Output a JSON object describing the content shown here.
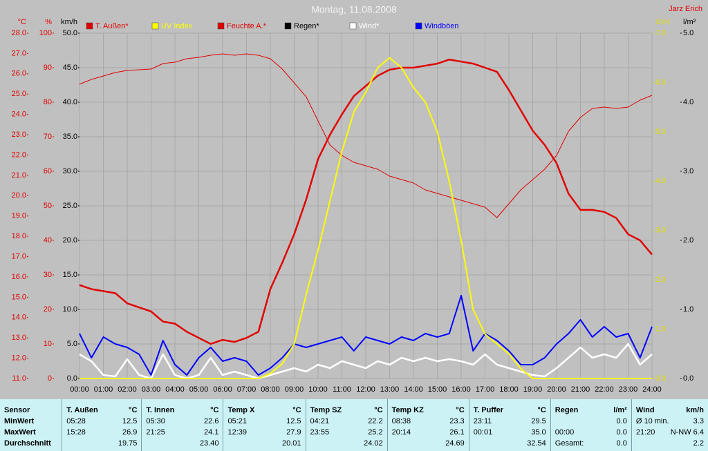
{
  "chart_data": {
    "type": "line",
    "title": "Montag, 11.08.2008",
    "author": "Jarz Erich",
    "xlim": [
      0,
      24
    ],
    "xticks": [
      {
        "value": 0,
        "label": "00:00"
      },
      {
        "value": 1,
        "label": "01:00"
      },
      {
        "value": 2,
        "label": "02:00"
      },
      {
        "value": 3,
        "label": "03:00"
      },
      {
        "value": 4,
        "label": "04:00"
      },
      {
        "value": 5,
        "label": "05:00"
      },
      {
        "value": 6,
        "label": "06:00"
      },
      {
        "value": 7,
        "label": "07:00"
      },
      {
        "value": 8,
        "label": "08:00"
      },
      {
        "value": 9,
        "label": "09:00"
      },
      {
        "value": 10,
        "label": "10:00"
      },
      {
        "value": 11,
        "label": "11:00"
      },
      {
        "value": 12,
        "label": "12:00"
      },
      {
        "value": 13,
        "label": "13:00"
      },
      {
        "value": 14,
        "label": "14:00"
      },
      {
        "value": 15,
        "label": "15:00"
      },
      {
        "value": 16,
        "label": "16:00"
      },
      {
        "value": 17,
        "label": "17:00"
      },
      {
        "value": 18,
        "label": "18:00"
      },
      {
        "value": 19,
        "label": "19:00"
      },
      {
        "value": 20,
        "label": "20:00"
      },
      {
        "value": 21,
        "label": "21:00"
      },
      {
        "value": 22,
        "label": "22:00"
      },
      {
        "value": 23,
        "label": "23:00"
      },
      {
        "value": 24,
        "label": "24:00"
      }
    ],
    "grid": true,
    "grid_axis": 2,
    "axes": [
      {
        "label": "°C",
        "side": "left",
        "color": "#e00000",
        "lim": [
          11,
          28
        ],
        "ticks": [
          {
            "value": 11,
            "label": "11.0"
          },
          {
            "value": 12,
            "label": "12.0"
          },
          {
            "value": 13,
            "label": "13.0"
          },
          {
            "value": 14,
            "label": "14.0"
          },
          {
            "value": 15,
            "label": "15.0"
          },
          {
            "value": 16,
            "label": "16.0"
          },
          {
            "value": 17,
            "label": "17.0"
          },
          {
            "value": 18,
            "label": "18.0"
          },
          {
            "value": 19,
            "label": "19.0"
          },
          {
            "value": 20,
            "label": "20.0"
          },
          {
            "value": 21,
            "label": "21.0"
          },
          {
            "value": 22,
            "label": "22.0"
          },
          {
            "value": 23,
            "label": "23.0"
          },
          {
            "value": 24,
            "label": "24.0"
          },
          {
            "value": 25,
            "label": "25.0"
          },
          {
            "value": 26,
            "label": "26.0"
          },
          {
            "value": 27,
            "label": "27.0"
          },
          {
            "value": 28,
            "label": "28.0"
          }
        ]
      },
      {
        "label": "%",
        "side": "left",
        "color": "#e00000",
        "lim": [
          0,
          100
        ],
        "ticks": [
          0,
          10,
          20,
          30,
          40,
          50,
          60,
          70,
          80,
          90,
          100
        ]
      },
      {
        "label": "km/h",
        "side": "left",
        "color": "#000000",
        "lim": [
          0,
          50
        ],
        "ticks": [
          {
            "value": 0,
            "label": "0.0"
          },
          {
            "value": 5,
            "label": "5.0"
          },
          {
            "value": 10,
            "label": "10.0"
          },
          {
            "value": 15,
            "label": "15.0"
          },
          {
            "value": 20,
            "label": "20.0"
          },
          {
            "value": 25,
            "label": "25.0"
          },
          {
            "value": 30,
            "label": "30.0"
          },
          {
            "value": 35,
            "label": "35.0"
          },
          {
            "value": 40,
            "label": "40.0"
          },
          {
            "value": 45,
            "label": "45.0"
          },
          {
            "value": 50,
            "label": "50.0"
          }
        ]
      },
      {
        "label": "UV-I",
        "side": "right",
        "color": "#e0e000",
        "lim": [
          0,
          7
        ],
        "ticks": [
          {
            "value": 0,
            "label": "0.0"
          },
          {
            "value": 1,
            "label": "1.0"
          },
          {
            "value": 2,
            "label": "2.0"
          },
          {
            "value": 3,
            "label": "3.0"
          },
          {
            "value": 4,
            "label": "4.0"
          },
          {
            "value": 5,
            "label": "5.0"
          },
          {
            "value": 6,
            "label": "6.0"
          },
          {
            "value": 7,
            "label": "7.0"
          }
        ]
      },
      {
        "label": "l/m²",
        "side": "right",
        "color": "#000000",
        "lim": [
          0,
          5
        ],
        "ticks": [
          {
            "value": 0,
            "label": "0.0"
          },
          {
            "value": 1,
            "label": "1.0"
          },
          {
            "value": 2,
            "label": "2.0"
          },
          {
            "value": 3,
            "label": "3.0"
          },
          {
            "value": 4,
            "label": "4.0"
          },
          {
            "value": 5,
            "label": "5.0"
          }
        ]
      }
    ],
    "legend": [
      {
        "name": "T. Außen*",
        "color": "#e00000"
      },
      {
        "name": "UV Index",
        "color": "#ffff00"
      },
      {
        "name": "Feuchte A.*",
        "color": "#e00000"
      },
      {
        "name": "Regen*",
        "color": "#000000"
      },
      {
        "name": "Wind*",
        "color": "#ffffff"
      },
      {
        "name": "Windböen",
        "color": "#0000ff"
      }
    ],
    "x": [
      0,
      0.5,
      1,
      1.5,
      2,
      2.5,
      3,
      3.5,
      4,
      4.5,
      5,
      5.5,
      6,
      6.5,
      7,
      7.5,
      8,
      8.5,
      9,
      9.5,
      10,
      10.5,
      11,
      11.5,
      12,
      12.5,
      13,
      13.5,
      14,
      14.5,
      15,
      15.5,
      16,
      16.5,
      17,
      17.5,
      18,
      18.5,
      19,
      19.5,
      20,
      20.5,
      21,
      21.5,
      22,
      22.5,
      23,
      23.5,
      24
    ],
    "series": [
      {
        "legend": 5,
        "axis": 2,
        "color": "#0000ff",
        "width": 2,
        "values": [
          6.5,
          3.0,
          6.0,
          5.0,
          4.5,
          3.5,
          0.5,
          5.5,
          2.0,
          0.5,
          3.0,
          4.5,
          2.5,
          3.0,
          2.5,
          0.5,
          1.5,
          3.0,
          5.0,
          4.5,
          5.0,
          5.5,
          6.0,
          4.0,
          6.0,
          5.5,
          5.0,
          6.0,
          5.5,
          6.5,
          6.0,
          6.5,
          12.0,
          4.0,
          6.5,
          5.5,
          4.0,
          2.0,
          2.0,
          3.0,
          5.0,
          6.5,
          8.5,
          6.0,
          7.5,
          6.0,
          6.5,
          3.0,
          7.5
        ]
      },
      {
        "legend": 4,
        "axis": 2,
        "color": "#ffffff",
        "width": 2.5,
        "values": [
          3.5,
          2.5,
          0.5,
          0.3,
          2.8,
          0.5,
          0,
          3.5,
          0.5,
          0,
          0.5,
          3.0,
          0.5,
          1.0,
          0.5,
          0,
          0.5,
          1.0,
          1.5,
          1.0,
          2.0,
          1.5,
          2.5,
          2.0,
          1.5,
          2.5,
          2.0,
          3.0,
          2.5,
          3.0,
          2.5,
          2.8,
          2.5,
          2.0,
          3.5,
          2.0,
          1.5,
          1.0,
          0.5,
          0.3,
          1.5,
          3.0,
          4.5,
          3.0,
          3.5,
          3.0,
          5.0,
          2.0,
          3.5
        ]
      },
      {
        "legend": 2,
        "axis": 1,
        "color": "#e00000",
        "width": 1,
        "values": [
          85.2,
          86.6,
          87.6,
          88.6,
          89.2,
          89.4,
          89.6,
          91.2,
          91.6,
          92.6,
          93.0,
          93.6,
          94.0,
          93.6,
          94.0,
          93.6,
          92.6,
          89.6,
          85.6,
          81.6,
          74.6,
          67.6,
          64.6,
          62.6,
          61.6,
          60.6,
          58.6,
          57.6,
          56.6,
          54.6,
          53.6,
          52.6,
          51.6,
          50.6,
          49.6,
          46.6,
          50.6,
          54.6,
          57.6,
          60.6,
          64.6,
          71.6,
          75.6,
          78.2,
          78.6,
          78.2,
          78.6,
          80.6,
          82.0
        ]
      },
      {
        "legend": 0,
        "axis": 0,
        "color": "#e00000",
        "width": 2.5,
        "values": [
          15.6,
          15.4,
          15.3,
          15.2,
          14.7,
          14.5,
          14.3,
          13.8,
          13.7,
          13.3,
          13.0,
          12.7,
          12.9,
          12.8,
          13.0,
          13.3,
          15.4,
          16.7,
          18.1,
          19.8,
          21.8,
          23.0,
          24.0,
          24.9,
          25.4,
          25.9,
          26.2,
          26.3,
          26.3,
          26.4,
          26.5,
          26.7,
          26.6,
          26.5,
          26.3,
          26.1,
          25.2,
          24.2,
          23.2,
          22.5,
          21.6,
          20.1,
          19.3,
          19.3,
          19.2,
          18.9,
          18.1,
          17.8,
          17.1
        ]
      },
      {
        "legend": 1,
        "axis": 3,
        "color": "#ffff00",
        "width": 2,
        "values": [
          0,
          0,
          0,
          0,
          0,
          0,
          0,
          0,
          0,
          0,
          0,
          0,
          0,
          0,
          0,
          0,
          0.1,
          0.3,
          0.7,
          1.7,
          2.6,
          3.6,
          4.6,
          5.4,
          5.8,
          6.3,
          6.5,
          6.3,
          5.9,
          5.6,
          5.0,
          4.0,
          2.8,
          1.4,
          0.9,
          0.7,
          0.5,
          0.2,
          0,
          0,
          0,
          0,
          0,
          0,
          0,
          0,
          0,
          0,
          0
        ]
      }
    ]
  },
  "table": {
    "columns": [
      {
        "name": "Sensor"
      },
      {
        "name": "T. Außen",
        "unit": "°C"
      },
      {
        "name": "T. Innen",
        "unit": "°C"
      },
      {
        "name": "Temp X",
        "unit": "°C"
      },
      {
        "name": "Temp SZ",
        "unit": "°C"
      },
      {
        "name": "Temp KZ",
        "unit": "°C"
      },
      {
        "name": "T. Puffer",
        "unit": "°C"
      },
      {
        "name": "Regen",
        "unit": "l/m²"
      },
      {
        "name": "Wind",
        "unit": "km/h"
      }
    ],
    "rows": [
      [
        {
          "l": "MinWert"
        },
        {
          "l": "05:28",
          "r": "12.5"
        },
        {
          "l": "05:30",
          "r": "22.6"
        },
        {
          "l": "05:21",
          "r": "12.5"
        },
        {
          "l": "04:21",
          "r": "22.2"
        },
        {
          "l": "08:38",
          "r": "23.3"
        },
        {
          "l": "23:11",
          "r": "29.5"
        },
        {
          "r": "0.0"
        },
        {
          "l": "Ø 10 min.",
          "r": "3.3"
        }
      ],
      [
        {
          "l": "MaxWert"
        },
        {
          "l": "15:28",
          "r": "26.9"
        },
        {
          "l": "21:25",
          "r": "24.1"
        },
        {
          "l": "12:39",
          "r": "27.9"
        },
        {
          "l": "23:55",
          "r": "25.2"
        },
        {
          "l": "20:14",
          "r": "26.1"
        },
        {
          "l": "00:01",
          "r": "35.0"
        },
        {
          "l": "00:00",
          "r": "0.0"
        },
        {
          "l": "21:20",
          "r": "N-NW 6.4"
        }
      ],
      [
        {
          "l": "Durchschnitt"
        },
        {
          "r": "19.75"
        },
        {
          "r": "23.40"
        },
        {
          "r": "20.01"
        },
        {
          "r": "24.02"
        },
        {
          "r": "24.69"
        },
        {
          "r": "32.54"
        },
        {
          "l": "Gesamt:",
          "r": "0.0"
        },
        {
          "r": "2.2"
        }
      ]
    ]
  }
}
